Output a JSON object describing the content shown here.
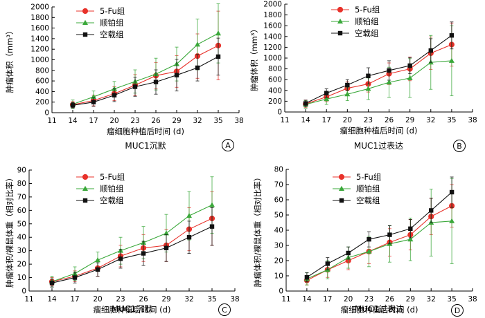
{
  "chart_data": [
    {
      "type": "line",
      "panel_label": "A",
      "subtitle": "MUC1沉默",
      "xlabel": "瘤细胞种植后时间 (d)",
      "ylabel": "肿瘤体积（mm³）",
      "xlim": [
        11,
        38
      ],
      "xticks": [
        11,
        14,
        17,
        20,
        23,
        26,
        29,
        32,
        35,
        38
      ],
      "ylim": [
        0,
        2000
      ],
      "yticks": [
        0,
        200,
        400,
        600,
        800,
        1000,
        1200,
        1400,
        1600,
        1800,
        2000
      ],
      "x": [
        14,
        17,
        20,
        23,
        26,
        29,
        32,
        35
      ],
      "legend_position": "top-left",
      "series": [
        {
          "name": "5-Fu组",
          "color": "#e8312a",
          "marker": "circle",
          "values": [
            150,
            230,
            360,
            520,
            700,
            780,
            1070,
            1270
          ],
          "err": [
            60,
            100,
            130,
            200,
            250,
            300,
            420,
            650
          ]
        },
        {
          "name": "顺铂组",
          "color": "#3aa83a",
          "marker": "triangle",
          "values": [
            160,
            300,
            450,
            590,
            730,
            920,
            1290,
            1500
          ],
          "err": [
            80,
            110,
            140,
            220,
            300,
            320,
            480,
            560
          ]
        },
        {
          "name": "空载组",
          "color": "#111111",
          "marker": "square",
          "values": [
            140,
            200,
            330,
            490,
            580,
            710,
            850,
            1060
          ],
          "err": [
            50,
            80,
            120,
            180,
            230,
            300,
            250,
            350
          ]
        }
      ]
    },
    {
      "type": "line",
      "panel_label": "B",
      "subtitle": "MUC1过表达",
      "xlabel": "瘤细胞种植后时间 (d)",
      "ylabel": "肿瘤体积（mm³）",
      "xlim": [
        11,
        38
      ],
      "xticks": [
        11,
        14,
        17,
        20,
        23,
        26,
        29,
        32,
        35,
        38
      ],
      "ylim": [
        0,
        2000
      ],
      "yticks": [
        0,
        200,
        400,
        600,
        800,
        1000,
        1200,
        1400,
        1600,
        1800,
        2000
      ],
      "x": [
        14,
        17,
        20,
        23,
        26,
        29,
        32,
        35
      ],
      "legend_position": "top-left",
      "series": [
        {
          "name": "5-Fu组",
          "color": "#e8312a",
          "marker": "circle",
          "values": [
            150,
            280,
            440,
            520,
            710,
            800,
            1090,
            1250
          ],
          "err": [
            70,
            90,
            120,
            150,
            200,
            220,
            300,
            400
          ]
        },
        {
          "name": "顺铂组",
          "color": "#3aa83a",
          "marker": "triangle",
          "values": [
            140,
            240,
            330,
            430,
            550,
            630,
            920,
            950
          ],
          "err": [
            70,
            100,
            120,
            200,
            280,
            360,
            500,
            650
          ]
        },
        {
          "name": "空载组",
          "color": "#111111",
          "marker": "square",
          "values": [
            160,
            350,
            500,
            670,
            770,
            860,
            1140,
            1420
          ],
          "err": [
            60,
            80,
            100,
            150,
            180,
            150,
            220,
            250
          ]
        }
      ]
    },
    {
      "type": "line",
      "panel_label": "C",
      "subtitle": "MUC1沉默",
      "xlabel": "瘤细胞种植后时间 (d)",
      "ylabel": "肿瘤体积/裸鼠体重（相对比率）",
      "xlim": [
        11,
        38
      ],
      "xticks": [
        11,
        14,
        17,
        20,
        23,
        26,
        29,
        32,
        35,
        38
      ],
      "ylim": [
        0,
        90
      ],
      "yticks": [
        0,
        10,
        20,
        30,
        40,
        50,
        60,
        70,
        80,
        90
      ],
      "x": [
        14,
        17,
        20,
        23,
        26,
        29,
        32,
        35
      ],
      "legend_position": "top-left",
      "series": [
        {
          "name": "5-Fu组",
          "color": "#e8312a",
          "marker": "circle",
          "values": [
            7,
            11,
            17,
            26,
            32,
            34,
            46,
            54
          ],
          "err": [
            3,
            4,
            6,
            8,
            10,
            12,
            16,
            20
          ]
        },
        {
          "name": "顺铂组",
          "color": "#3aa83a",
          "marker": "triangle",
          "values": [
            7,
            13,
            23,
            30,
            36,
            43,
            56,
            64
          ],
          "err": [
            4,
            5,
            6,
            10,
            12,
            14,
            18,
            21
          ]
        },
        {
          "name": "空载组",
          "color": "#111111",
          "marker": "square",
          "values": [
            6,
            10,
            16,
            24,
            28,
            32,
            40,
            48
          ],
          "err": [
            3,
            4,
            5,
            7,
            9,
            10,
            12,
            14
          ]
        }
      ]
    },
    {
      "type": "line",
      "panel_label": "D",
      "subtitle": "MUC1过表达",
      "xlabel": "瘤细胞种植后时间 (d)",
      "ylabel": "肿瘤体积/裸鼠体重（相对比率）",
      "xlim": [
        11,
        38
      ],
      "xticks": [
        11,
        14,
        17,
        20,
        23,
        26,
        29,
        32,
        35,
        38
      ],
      "ylim": [
        0,
        80
      ],
      "yticks": [
        0,
        10,
        20,
        30,
        40,
        50,
        60,
        70,
        80
      ],
      "x": [
        14,
        17,
        20,
        23,
        26,
        29,
        32,
        35
      ],
      "legend_position": "top-right",
      "series": [
        {
          "name": "5-Fu组",
          "color": "#e8312a",
          "marker": "circle",
          "values": [
            7,
            14,
            20,
            26,
            32,
            37,
            49,
            56
          ],
          "err": [
            3,
            5,
            6,
            8,
            9,
            10,
            12,
            14
          ]
        },
        {
          "name": "顺铂组",
          "color": "#3aa83a",
          "marker": "triangle",
          "values": [
            8,
            14,
            22,
            26,
            31,
            34,
            45,
            46
          ],
          "err": [
            4,
            6,
            7,
            10,
            12,
            14,
            22,
            28
          ]
        },
        {
          "name": "空载组",
          "color": "#111111",
          "marker": "square",
          "values": [
            9,
            18,
            25,
            34,
            37,
            41,
            53,
            65
          ],
          "err": [
            3,
            4,
            4,
            5,
            6,
            6,
            8,
            10
          ]
        }
      ]
    }
  ]
}
